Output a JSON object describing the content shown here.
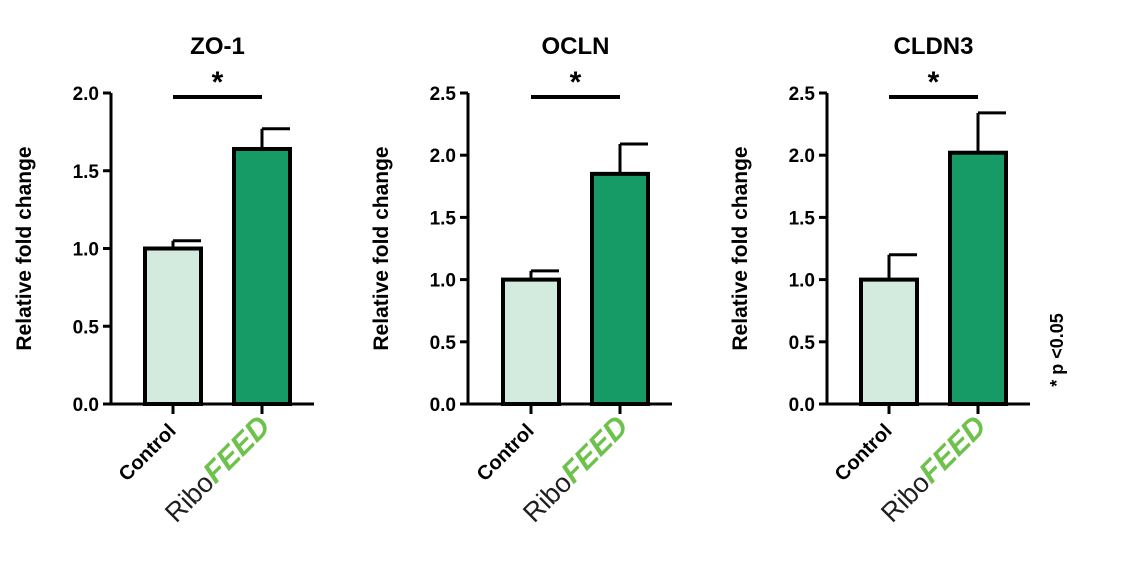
{
  "chart_data": [
    {
      "type": "bar",
      "title": "ZO-1",
      "ylabel": "Relative fold change",
      "categories": [
        "Control",
        "RiboFEED"
      ],
      "values": [
        1.0,
        1.64
      ],
      "errors": [
        0.05,
        0.13
      ],
      "ylim": [
        0,
        2.0
      ],
      "yticks": [
        "0.0",
        "0.5",
        "1.0",
        "1.5",
        "2.0"
      ],
      "significance": "*"
    },
    {
      "type": "bar",
      "title": "OCLN",
      "ylabel": "Relative fold change",
      "categories": [
        "Control",
        "RiboFEED"
      ],
      "values": [
        1.0,
        1.85
      ],
      "errors": [
        0.07,
        0.24
      ],
      "ylim": [
        0,
        2.5
      ],
      "yticks": [
        "0.0",
        "0.5",
        "1.0",
        "1.5",
        "2.0",
        "2.5"
      ],
      "significance": "*"
    },
    {
      "type": "bar",
      "title": "CLDN3",
      "ylabel": "Relative fold change",
      "categories": [
        "Control",
        "RiboFEED"
      ],
      "values": [
        1.0,
        2.02
      ],
      "errors": [
        0.2,
        0.32
      ],
      "ylim": [
        0,
        2.5
      ],
      "yticks": [
        "0.0",
        "0.5",
        "1.0",
        "1.5",
        "2.0",
        "2.5"
      ],
      "significance": "*"
    }
  ],
  "brand": {
    "ribo": "Ribo",
    "feed": "FEED"
  },
  "footnote": "* p <0.05",
  "colors": {
    "control": "#d3eadf",
    "treatment": "#179b66",
    "feed": "#6cc24a",
    "axis": "#000000"
  }
}
